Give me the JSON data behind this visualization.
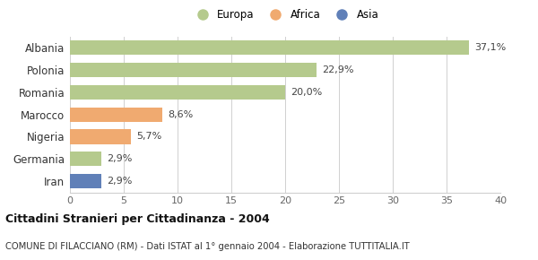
{
  "categories": [
    "Albania",
    "Polonia",
    "Romania",
    "Marocco",
    "Nigeria",
    "Germania",
    "Iran"
  ],
  "values": [
    37.1,
    22.9,
    20.0,
    8.6,
    5.7,
    2.9,
    2.9
  ],
  "labels": [
    "37,1%",
    "22,9%",
    "20,0%",
    "8,6%",
    "5,7%",
    "2,9%",
    "2,9%"
  ],
  "colors": [
    "#b5ca8d",
    "#b5ca8d",
    "#b5ca8d",
    "#f0aa70",
    "#f0aa70",
    "#b5ca8d",
    "#6080b8"
  ],
  "legend_items": [
    {
      "label": "Europa",
      "color": "#b5ca8d"
    },
    {
      "label": "Africa",
      "color": "#f0aa70"
    },
    {
      "label": "Asia",
      "color": "#6080b8"
    }
  ],
  "xlim": [
    0,
    40
  ],
  "xticks": [
    0,
    5,
    10,
    15,
    20,
    25,
    30,
    35,
    40
  ],
  "title_bold": "Cittadini Stranieri per Cittadinanza - 2004",
  "subtitle": "COMUNE DI FILACCIANO (RM) - Dati ISTAT al 1° gennaio 2004 - Elaborazione TUTTITALIA.IT",
  "bg_color": "#ffffff",
  "grid_color": "#d0d0d0",
  "bar_height": 0.65
}
